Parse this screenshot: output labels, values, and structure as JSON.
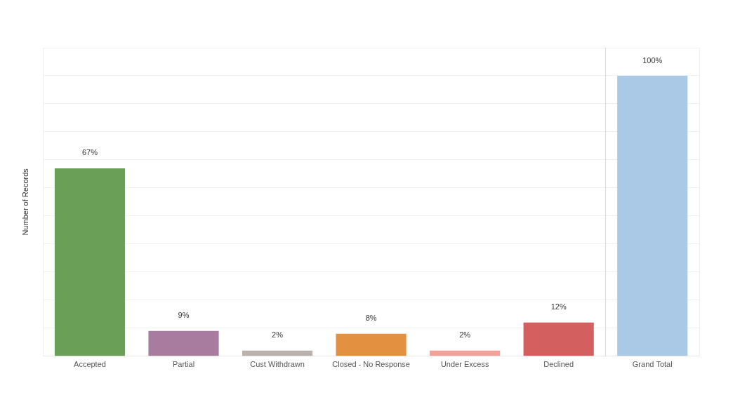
{
  "chart_data": {
    "type": "bar",
    "y_label": "Number of Records",
    "categories": [
      "Accepted",
      "Partial",
      "Cust Withdrawn",
      "Closed - No Response",
      "Under Excess",
      "Declined",
      "Grand Total"
    ],
    "values": [
      67,
      9,
      2,
      8,
      2,
      12,
      100
    ],
    "value_labels": [
      "67%",
      "9%",
      "2%",
      "8%",
      "2%",
      "12%",
      "100%"
    ],
    "colors": [
      "#6a9f58",
      "#a77c9f",
      "#bab0ac",
      "#e39140",
      "#f1a09a",
      "#d35f5f",
      "#a9c9e6"
    ],
    "ylim": [
      0,
      110
    ],
    "yticks": [
      0,
      10,
      20,
      30,
      40,
      50,
      60,
      70,
      80,
      90,
      100,
      110
    ],
    "grid": true,
    "data_labels": true,
    "tick_labels": "x"
  }
}
